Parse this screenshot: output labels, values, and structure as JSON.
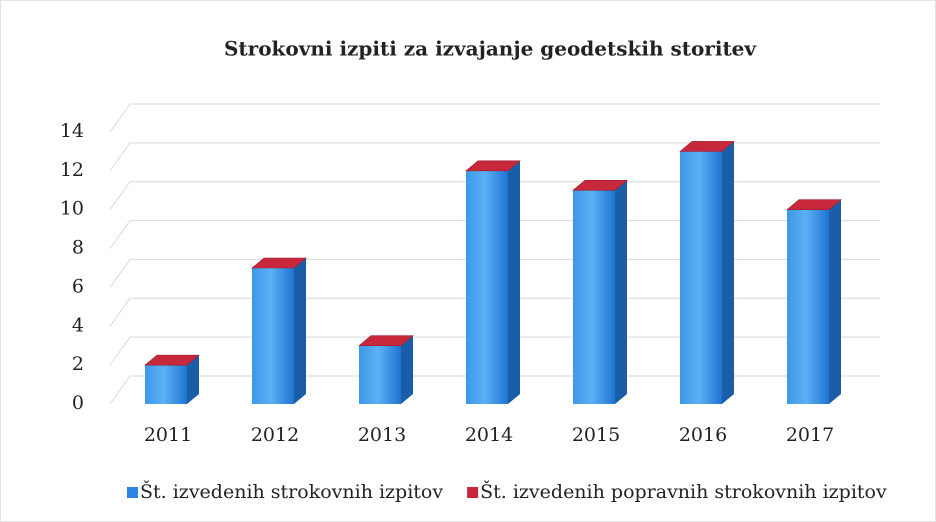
{
  "chart_data": {
    "type": "bar3d_stacked",
    "title": "Strokovni izpiti za izvajanje geodetskih storitev",
    "categories": [
      "2011",
      "2012",
      "2013",
      "2014",
      "2015",
      "2016",
      "2017"
    ],
    "series": [
      {
        "name": "Št. izvedenih strokovnih izpitov",
        "color": "#2a86e0",
        "values": [
          2,
          7,
          3,
          12,
          11,
          13,
          10
        ]
      },
      {
        "name": "Št. izvedenih popravnih strokovnih izpitov",
        "color": "#c8283c",
        "values": [
          0,
          0,
          0,
          0,
          0,
          0,
          0
        ]
      }
    ],
    "ylim": [
      0,
      14
    ],
    "yticks": [
      0,
      2,
      4,
      6,
      8,
      10,
      12,
      14
    ],
    "grid": true,
    "legend": "bottom"
  }
}
